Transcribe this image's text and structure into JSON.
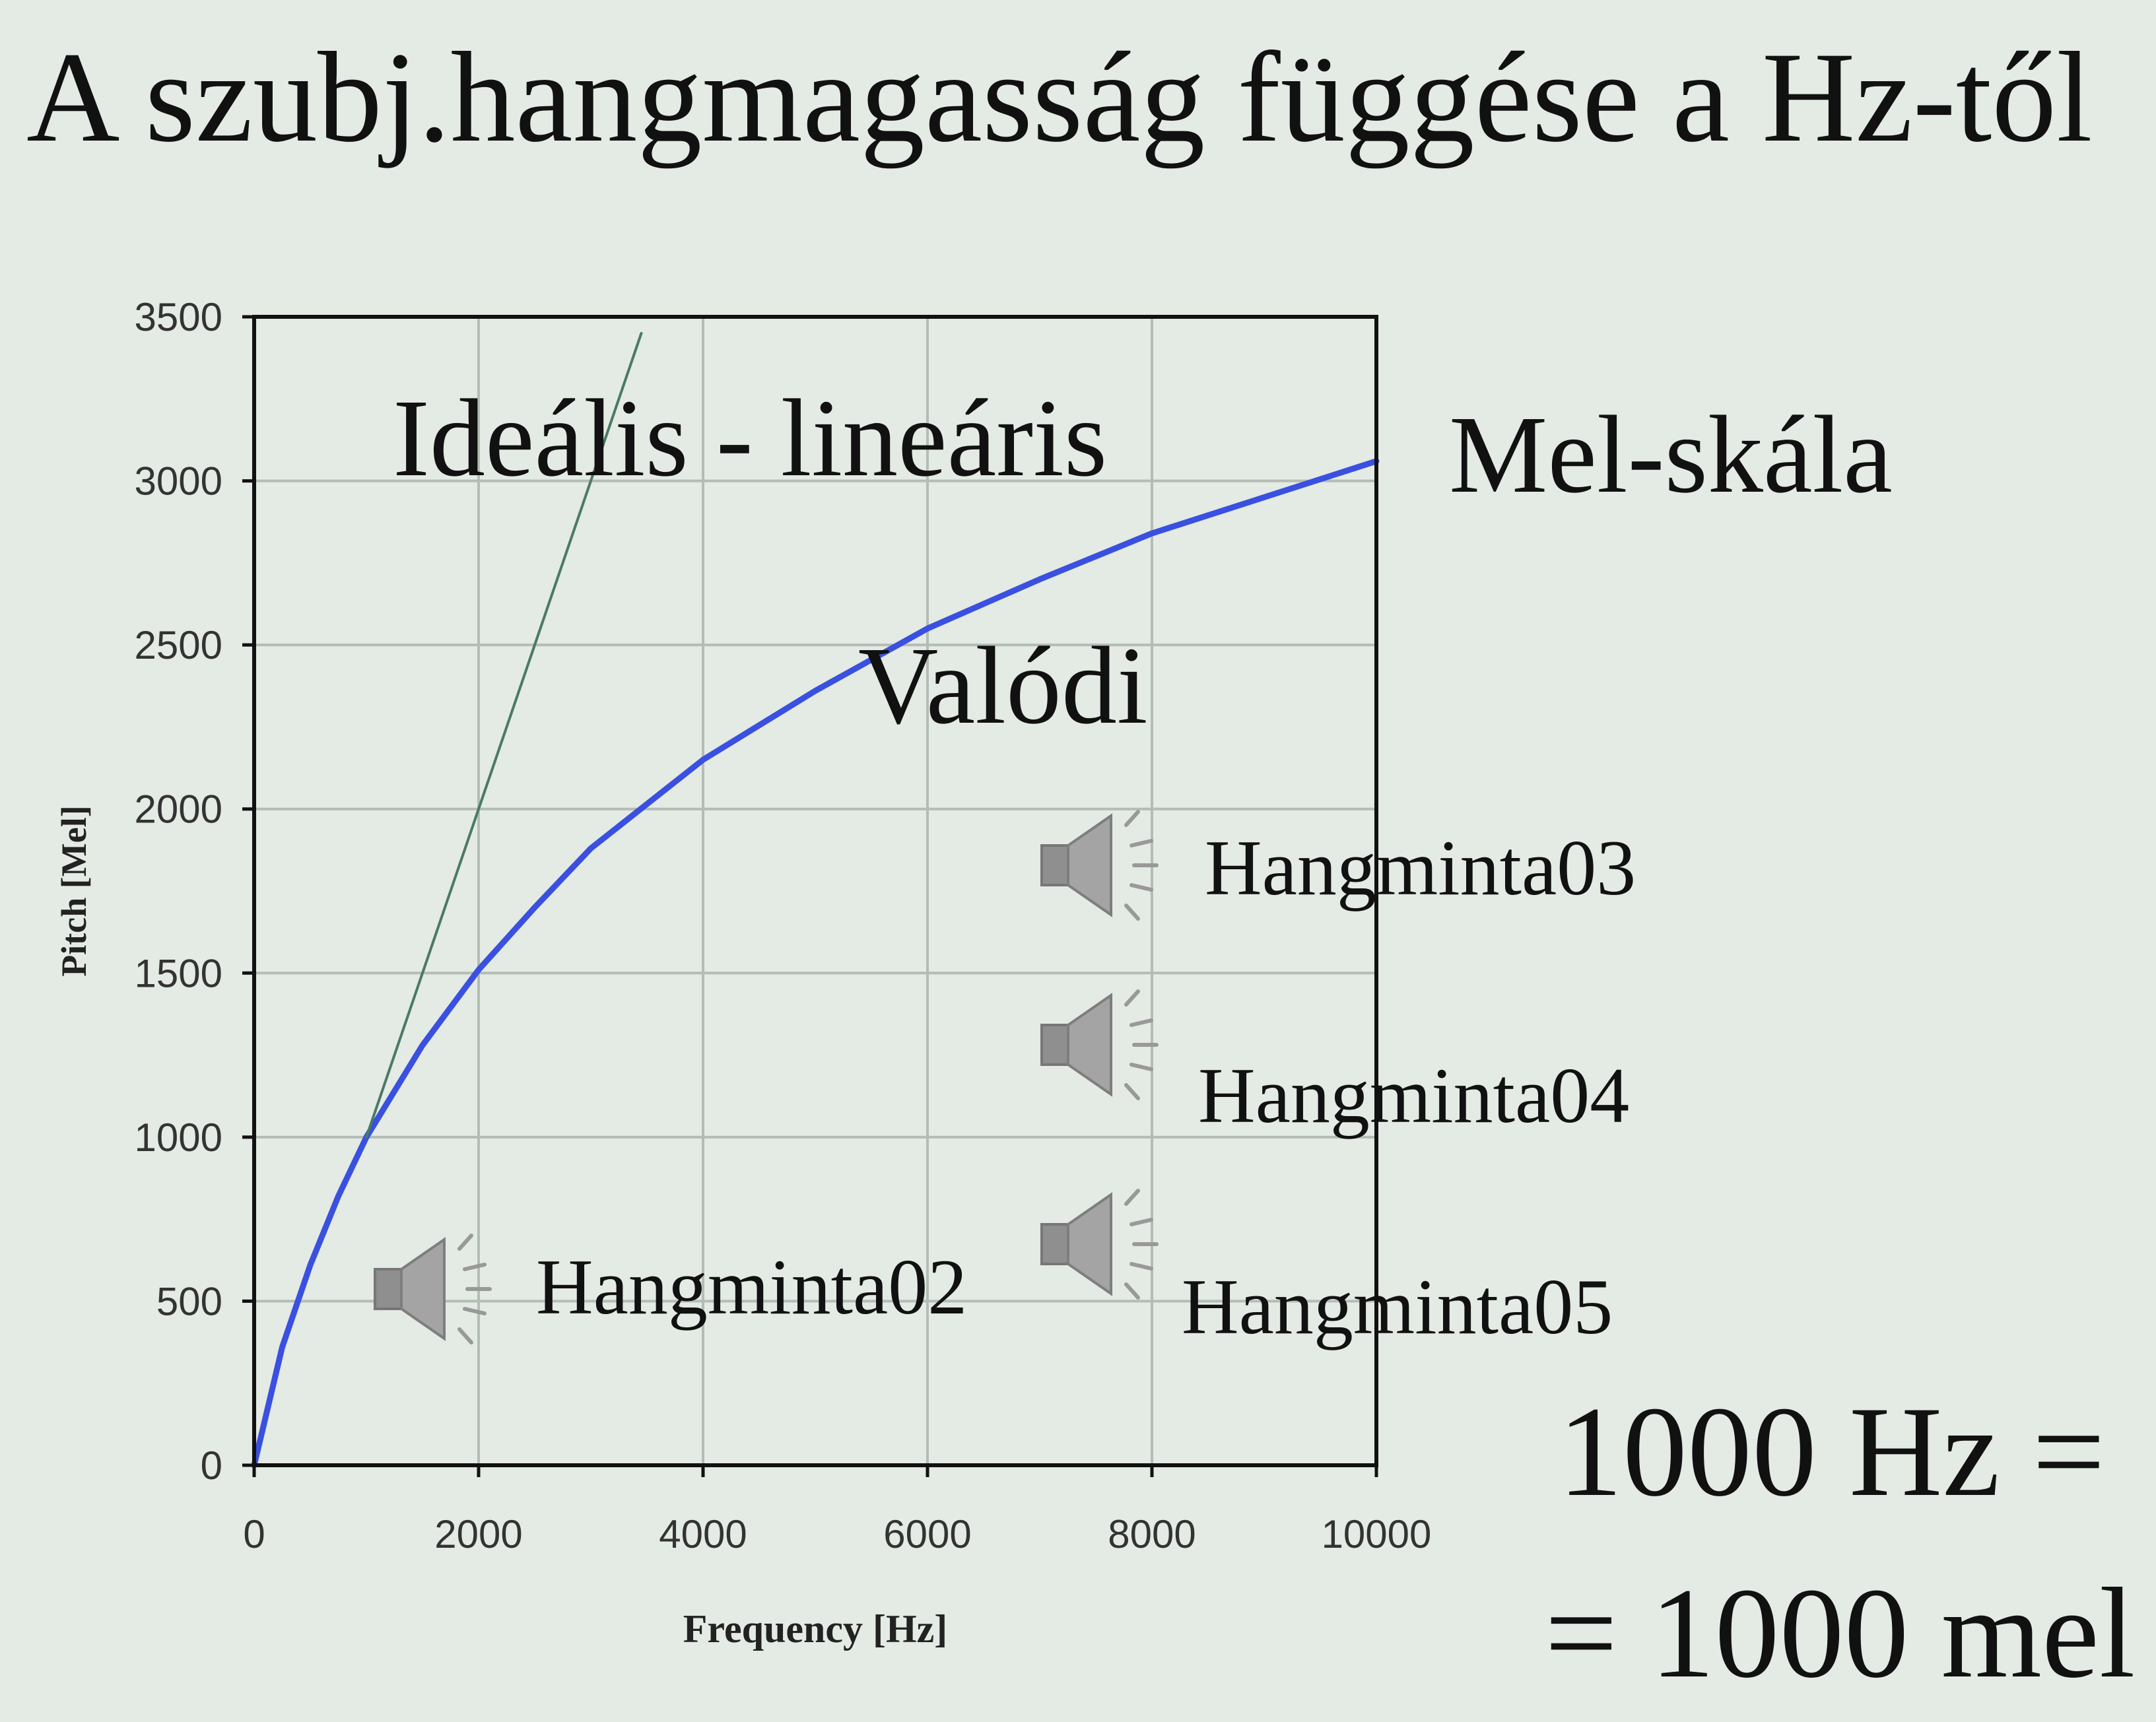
{
  "slide": {
    "title": "A szubj.hangmagasság függése a Hz-től",
    "equation_line1": "1000 Hz =",
    "equation_line2": "= 1000 mel"
  },
  "chart_data": {
    "type": "line",
    "xlabel": "Frequency [Hz]",
    "ylabel": "Pitch [Mel]",
    "xlim": [
      0,
      10000
    ],
    "ylim": [
      0,
      3500
    ],
    "x_ticks": [
      0,
      2000,
      4000,
      6000,
      8000,
      10000
    ],
    "y_ticks": [
      0,
      500,
      1000,
      1500,
      2000,
      2500,
      3000,
      3500
    ],
    "x_tick_labels": [
      "0",
      "2000",
      "4000",
      "6000",
      "8000",
      "10000"
    ],
    "y_tick_labels": [
      "0",
      "500",
      "1000",
      "1500",
      "2000",
      "2500",
      "3000",
      "3500"
    ],
    "grid": true,
    "series": [
      {
        "name": "Valódi",
        "color": "#3a50e0",
        "x": [
          0,
          250,
          500,
          750,
          1000,
          1500,
          2000,
          2500,
          3000,
          4000,
          5000,
          6000,
          7000,
          8000,
          9000,
          10000
        ],
        "y": [
          0,
          360,
          610,
          820,
          1000,
          1280,
          1510,
          1700,
          1880,
          2150,
          2360,
          2550,
          2700,
          2840,
          2950,
          3060
        ]
      },
      {
        "name": "Ideális - lineáris",
        "color": "#4a7a66",
        "x": [
          1000,
          3450
        ],
        "y": [
          1000,
          3450
        ]
      }
    ],
    "annotations": {
      "ideal": "Ideális - lineáris",
      "mel": "Mel-skála",
      "real": "Valódi"
    }
  },
  "sound_samples": [
    {
      "label": "Hangminta02",
      "icon": "speaker-icon"
    },
    {
      "label": "Hangminta03",
      "icon": "speaker-icon"
    },
    {
      "label": "Hangminta04",
      "icon": "speaker-icon"
    },
    {
      "label": "Hangminta05",
      "icon": "speaker-icon"
    }
  ]
}
